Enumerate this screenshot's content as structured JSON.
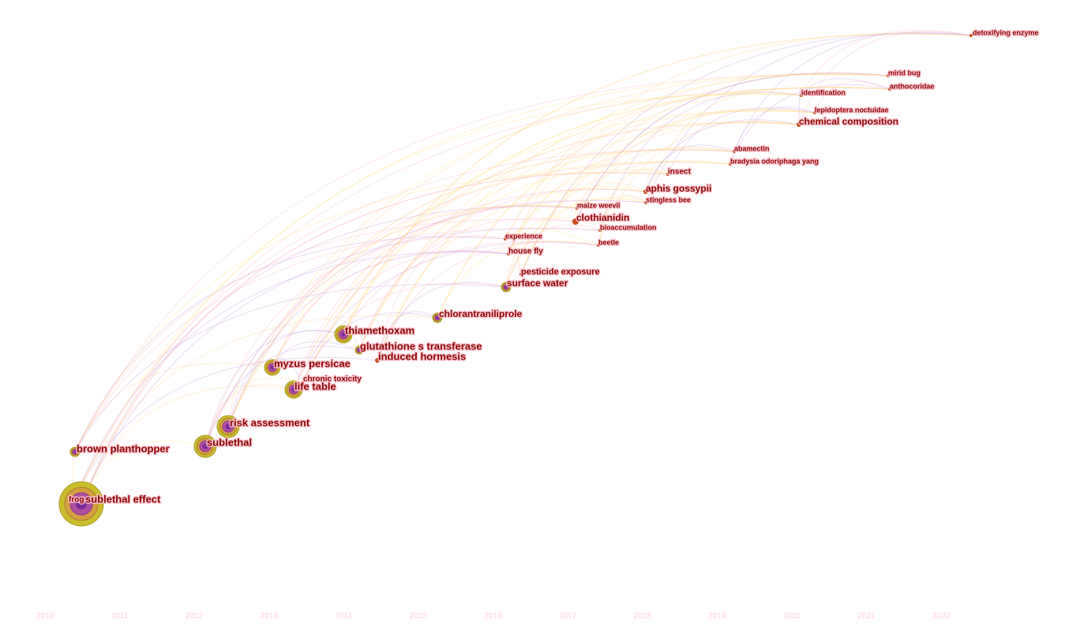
{
  "nodes": [
    {
      "label": "detoxifying enzyme"
    },
    {
      "label": "mirid bug"
    },
    {
      "label": "anthocoridae"
    },
    {
      "label": "identification"
    },
    {
      "label": "lepidoptera noctuidae"
    },
    {
      "label": "chemical composition"
    },
    {
      "label": "abamectin"
    },
    {
      "label": "bradysia odoriphaga yang"
    },
    {
      "label": "insect"
    },
    {
      "label": "aphis gossypii"
    },
    {
      "label": "stingless bee"
    },
    {
      "label": "maize weevil"
    },
    {
      "label": "clothianidin"
    },
    {
      "label": "bioaccumulation"
    },
    {
      "label": "beetle"
    },
    {
      "label": "experience"
    },
    {
      "label": "house fly"
    },
    {
      "label": "pesticide exposure"
    },
    {
      "label": "surface water"
    },
    {
      "label": "chlorantraniliprole"
    },
    {
      "label": "thiamethoxam"
    },
    {
      "label": "glutathione s transferase"
    },
    {
      "label": "induced hormesis"
    },
    {
      "label": "myzus persicae"
    },
    {
      "label": "chronic toxicity"
    },
    {
      "label": "life table"
    },
    {
      "label": "risk assessment"
    },
    {
      "label": "brown planthopper"
    },
    {
      "label": "sublethal"
    },
    {
      "label": "frog"
    },
    {
      "label": "sublethal effect"
    }
  ],
  "timeline": [
    "2010",
    "2011",
    "2012",
    "2013",
    "2014",
    "2015",
    "2016",
    "2017",
    "2018",
    "2019",
    "2020",
    "2021",
    "2022"
  ]
}
